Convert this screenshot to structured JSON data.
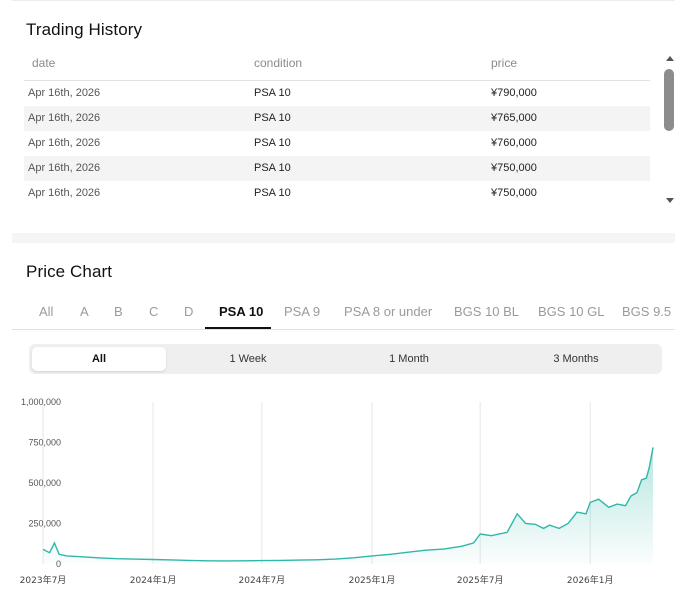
{
  "trading_history": {
    "title": "Trading History",
    "columns": [
      "date",
      "condition",
      "price"
    ],
    "rows": [
      {
        "date": "Apr 16th, 2026",
        "condition": "PSA 10",
        "price": "¥790,000"
      },
      {
        "date": "Apr 16th, 2026",
        "condition": "PSA 10",
        "price": "¥765,000"
      },
      {
        "date": "Apr 16th, 2026",
        "condition": "PSA 10",
        "price": "¥760,000"
      },
      {
        "date": "Apr 16th, 2026",
        "condition": "PSA 10",
        "price": "¥750,000"
      },
      {
        "date": "Apr 16th, 2026",
        "condition": "PSA 10",
        "price": "¥750,000"
      }
    ]
  },
  "price_chart": {
    "title": "Price Chart",
    "grade_tabs": [
      {
        "label": "All",
        "active": false
      },
      {
        "label": "A",
        "active": false
      },
      {
        "label": "B",
        "active": false
      },
      {
        "label": "C",
        "active": false
      },
      {
        "label": "D",
        "active": false
      },
      {
        "label": "PSA 10",
        "active": true
      },
      {
        "label": "PSA 9",
        "active": false
      },
      {
        "label": "PSA 8 or under",
        "active": false
      },
      {
        "label": "BGS 10 BL",
        "active": false
      },
      {
        "label": "BGS 10 GL",
        "active": false
      },
      {
        "label": "BGS 9.5",
        "active": false
      }
    ],
    "periods": [
      {
        "label": "All",
        "active": true
      },
      {
        "label": "1 Week",
        "active": false
      },
      {
        "label": "1 Month",
        "active": false
      },
      {
        "label": "3 Months",
        "active": false
      }
    ]
  },
  "colors": {
    "line": "#2fb7a8",
    "fill_top": "#2fb7a8",
    "grid": "#e6e6e6"
  },
  "chart_data": {
    "type": "area",
    "title": "",
    "xlabel": "",
    "ylabel": "",
    "ylim": [
      0,
      1000000
    ],
    "yticks": [
      0,
      250000,
      500000,
      750000,
      1000000
    ],
    "ytick_labels": [
      "0",
      "250,000",
      "500,000",
      "750,000",
      "1,000,000"
    ],
    "xticks": [
      "2023-07-01",
      "2024-01-01",
      "2024-07-01",
      "2025-01-01",
      "2025-07-01",
      "2026-01-01"
    ],
    "xtick_labels": [
      "2023年7月",
      "2024年1月",
      "2024年7月",
      "2025年1月",
      "2025年7月",
      "2026年1月"
    ],
    "xlim": [
      "2023-07-01",
      "2026-04-16"
    ],
    "grid": "vertical",
    "series": [
      {
        "x": [
          "2023-07-01",
          "2023-07-12",
          "2023-07-20",
          "2023-07-28",
          "2023-08-10",
          "2023-09-01",
          "2023-10-01",
          "2023-11-01",
          "2023-12-01",
          "2024-01-01",
          "2024-02-01",
          "2024-03-01",
          "2024-04-01",
          "2024-05-01",
          "2024-06-01",
          "2024-07-01",
          "2024-08-01",
          "2024-09-01",
          "2024-10-01",
          "2024-11-01",
          "2024-12-01",
          "2025-01-01",
          "2025-02-01",
          "2025-03-01",
          "2025-04-01",
          "2025-05-01",
          "2025-06-01",
          "2025-06-20",
          "2025-07-01",
          "2025-07-20",
          "2025-08-01",
          "2025-08-15",
          "2025-09-01",
          "2025-09-15",
          "2025-10-01",
          "2025-10-15",
          "2025-10-25",
          "2025-11-10",
          "2025-11-25",
          "2025-12-10",
          "2025-12-25",
          "2026-01-01",
          "2026-01-15",
          "2026-02-01",
          "2026-02-15",
          "2026-03-01",
          "2026-03-10",
          "2026-03-20",
          "2026-03-28",
          "2026-04-05",
          "2026-04-10",
          "2026-04-16"
        ],
        "values": [
          90000,
          70000,
          130000,
          60000,
          50000,
          45000,
          38000,
          33000,
          30000,
          28000,
          25000,
          22000,
          20000,
          19000,
          20000,
          21000,
          22000,
          24000,
          26000,
          30000,
          38000,
          50000,
          60000,
          72000,
          85000,
          92000,
          110000,
          130000,
          185000,
          175000,
          185000,
          195000,
          310000,
          250000,
          245000,
          220000,
          240000,
          220000,
          250000,
          320000,
          310000,
          380000,
          400000,
          350000,
          370000,
          360000,
          420000,
          440000,
          520000,
          530000,
          600000,
          720000
        ]
      }
    ]
  }
}
